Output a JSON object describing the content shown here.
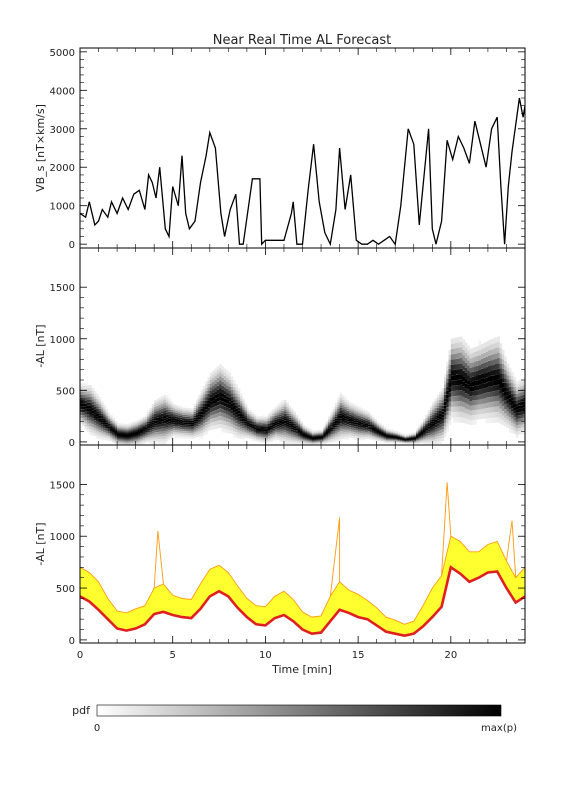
{
  "figure": {
    "title": "Near Real Time AL Forecast",
    "xlabel": "Time [min]",
    "pdf_label": "pdf",
    "colorbar_min": "0",
    "colorbar_max": "max(p)"
  },
  "chart_data": [
    {
      "type": "line",
      "title": "Near Real Time AL Forecast",
      "ylabel": "VB_s [nT×km/s]",
      "xlim": [
        0,
        24
      ],
      "ylim": [
        -100,
        5100
      ],
      "yticks": [
        0,
        1000,
        2000,
        3000,
        4000,
        5000
      ],
      "color": "#000000",
      "x": [
        0,
        0.3,
        0.5,
        0.8,
        1.0,
        1.2,
        1.5,
        1.7,
        2.0,
        2.3,
        2.6,
        2.9,
        3.2,
        3.5,
        3.7,
        3.9,
        4.1,
        4.3,
        4.6,
        4.8,
        5.0,
        5.3,
        5.5,
        5.7,
        5.9,
        6.2,
        6.5,
        6.8,
        7.0,
        7.3,
        7.6,
        7.8,
        8.1,
        8.4,
        8.6,
        8.8,
        9.3,
        9.7,
        9.8,
        10.0,
        10.5,
        11.0,
        11.4,
        11.5,
        11.7,
        12.0,
        12.3,
        12.6,
        12.9,
        13.2,
        13.5,
        13.8,
        14.0,
        14.3,
        14.6,
        14.9,
        15.2,
        15.5,
        15.8,
        16.1,
        16.4,
        16.7,
        17.0,
        17.3,
        17.5,
        17.7,
        18.0,
        18.3,
        18.5,
        18.8,
        19.0,
        19.2,
        19.5,
        19.8,
        20.1,
        20.4,
        20.7,
        21.0,
        21.3,
        21.6,
        21.9,
        22.2,
        22.5,
        22.7,
        22.9,
        23.1,
        23.3,
        23.5,
        23.7,
        23.9,
        24.0
      ],
      "y": [
        800,
        700,
        1100,
        500,
        600,
        900,
        700,
        1100,
        800,
        1200,
        900,
        1300,
        1400,
        900,
        1800,
        1600,
        1200,
        2000,
        400,
        200,
        1500,
        1000,
        2300,
        800,
        400,
        600,
        1600,
        2300,
        2900,
        2500,
        800,
        200,
        900,
        1300,
        0,
        0,
        1700,
        1700,
        0,
        100,
        100,
        100,
        800,
        1100,
        0,
        0,
        1400,
        2600,
        1100,
        300,
        0,
        900,
        2500,
        900,
        1800,
        100,
        0,
        0,
        100,
        0,
        100,
        200,
        0,
        1000,
        2000,
        3000,
        2600,
        500,
        1500,
        3000,
        400,
        0,
        600,
        2700,
        2200,
        2800,
        2500,
        2100,
        3200,
        2600,
        2000,
        3000,
        3300,
        1500,
        0,
        1500,
        2400,
        3100,
        3800,
        3300,
        3600
      ]
    },
    {
      "type": "heatmap",
      "ylabel": "-AL [nT]",
      "xlim": [
        0,
        24
      ],
      "ylim": [
        -30,
        1880
      ],
      "yticks": [
        0,
        500,
        1000,
        1500
      ],
      "colorscale": "white to black (pdf 0 to max(p))",
      "x": [
        0,
        0.5,
        1.0,
        1.5,
        2.0,
        2.5,
        3.0,
        3.5,
        4.0,
        4.5,
        5.0,
        5.5,
        6.0,
        6.5,
        7.0,
        7.5,
        8.0,
        8.5,
        9.0,
        9.5,
        10.0,
        10.5,
        11.0,
        11.5,
        12.0,
        12.5,
        13.0,
        13.5,
        14.0,
        14.5,
        15.0,
        15.5,
        16.0,
        16.5,
        17.0,
        17.5,
        18.0,
        18.5,
        19.0,
        19.5,
        20.0,
        20.5,
        21.0,
        21.5,
        22.0,
        22.5,
        23.0,
        23.5,
        24.0
      ],
      "mode_AL": [
        350,
        300,
        220,
        140,
        70,
        60,
        80,
        120,
        190,
        210,
        200,
        180,
        170,
        260,
        380,
        420,
        360,
        260,
        170,
        120,
        110,
        170,
        190,
        130,
        70,
        40,
        50,
        130,
        230,
        200,
        170,
        150,
        100,
        60,
        50,
        30,
        40,
        100,
        170,
        250,
        600,
        580,
        520,
        560,
        580,
        580,
        430,
        300,
        350
      ],
      "spread_AL": [
        150,
        180,
        150,
        100,
        80,
        80,
        90,
        100,
        160,
        180,
        120,
        110,
        110,
        170,
        210,
        240,
        220,
        180,
        110,
        90,
        100,
        120,
        160,
        120,
        70,
        50,
        50,
        110,
        170,
        130,
        120,
        100,
        70,
        50,
        40,
        30,
        40,
        90,
        160,
        200,
        300,
        320,
        280,
        280,
        300,
        320,
        240,
        200,
        200
      ]
    },
    {
      "type": "area",
      "ylabel": "-AL [nT]",
      "xlim": [
        0,
        24
      ],
      "ylim": [
        -30,
        1880
      ],
      "yticks": [
        0,
        500,
        1000,
        1500
      ],
      "x": [
        0,
        0.5,
        1.0,
        1.5,
        2.0,
        2.5,
        3.0,
        3.5,
        4.0,
        4.5,
        5.0,
        5.5,
        6.0,
        6.5,
        7.0,
        7.5,
        8.0,
        8.5,
        9.0,
        9.5,
        10.0,
        10.5,
        11.0,
        11.5,
        12.0,
        12.5,
        13.0,
        13.5,
        14.0,
        14.5,
        15.0,
        15.5,
        16.0,
        16.5,
        17.0,
        17.5,
        18.0,
        18.5,
        19.0,
        19.5,
        20.0,
        20.5,
        21.0,
        21.5,
        22.0,
        22.5,
        23.0,
        23.5,
        24.0
      ],
      "series": [
        {
          "values": [
            420,
            370,
            290,
            200,
            110,
            90,
            110,
            150,
            250,
            270,
            240,
            220,
            210,
            300,
            420,
            470,
            420,
            310,
            220,
            150,
            140,
            210,
            240,
            180,
            100,
            60,
            70,
            180,
            290,
            260,
            220,
            200,
            140,
            80,
            60,
            40,
            60,
            130,
            220,
            320,
            700,
            640,
            560,
            600,
            650,
            660,
            500,
            360,
            420
          ],
          "color": "#e02020"
        },
        {
          "values": [
            700,
            650,
            560,
            400,
            280,
            260,
            300,
            330,
            500,
            540,
            430,
            400,
            390,
            540,
            680,
            720,
            650,
            520,
            400,
            330,
            320,
            420,
            470,
            390,
            270,
            220,
            230,
            420,
            560,
            480,
            440,
            380,
            310,
            220,
            190,
            150,
            180,
            330,
            500,
            620,
            1000,
            950,
            850,
            850,
            920,
            950,
            760,
            600,
            700
          ],
          "color": "#ffd21a"
        },
        {
          "values": [
            700,
            650,
            560,
            400,
            280,
            260,
            300,
            330,
            500,
            540,
            430,
            400,
            390,
            540,
            680,
            720,
            650,
            520,
            400,
            330,
            320,
            420,
            470,
            390,
            270,
            220,
            230,
            420,
            560,
            480,
            440,
            380,
            310,
            220,
            190,
            150,
            180,
            330,
            500,
            620,
            1000,
            950,
            850,
            850,
            920,
            950,
            760,
            600,
            700
          ],
          "color": "#ff9a10"
        }
      ],
      "peaks": [
        {
          "x": 4.2,
          "y": 1050
        },
        {
          "x": 14.0,
          "y": 1180
        },
        {
          "x": 19.8,
          "y": 1520
        },
        {
          "x": 23.3,
          "y": 1150
        }
      ]
    }
  ],
  "xaxis": {
    "ticks": [
      0,
      5,
      10,
      15,
      20
    ],
    "ticklabels": [
      "0",
      "5",
      "10",
      "15",
      "20"
    ]
  }
}
